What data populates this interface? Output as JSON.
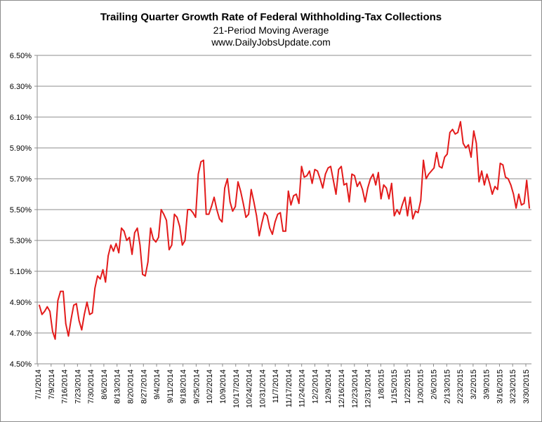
{
  "chart_data": {
    "type": "line",
    "title": "Trailing Quarter Growth Rate of Federal Withholding-Tax Collections",
    "subtitle": "21-Period Moving Average",
    "source": "www.DailyJobsUpdate.com",
    "xlabel": "",
    "ylabel": "",
    "ylim": [
      0.045,
      0.065
    ],
    "y_ticks": [
      "4.50%",
      "4.70%",
      "4.90%",
      "5.10%",
      "5.30%",
      "5.50%",
      "5.70%",
      "5.90%",
      "6.10%",
      "6.30%",
      "6.50%"
    ],
    "x_ticks": [
      "7/1/2014",
      "7/9/2014",
      "7/16/2014",
      "7/23/2014",
      "7/30/2014",
      "8/6/2014",
      "8/13/2014",
      "8/20/2014",
      "8/27/2014",
      "9/4/2014",
      "9/11/2014",
      "9/18/2014",
      "9/25/2014",
      "10/2/2014",
      "10/9/2014",
      "10/17/2014",
      "10/24/2014",
      "10/31/2014",
      "11/7/2014",
      "11/17/2014",
      "11/24/2014",
      "12/2/2014",
      "12/9/2014",
      "12/16/2014",
      "12/23/2014",
      "12/31/2014",
      "1/8/2015",
      "1/15/2015",
      "1/22/2015",
      "1/30/2015",
      "2/6/2015",
      "2/13/2015",
      "2/23/2015",
      "3/2/2015",
      "3/9/2015",
      "3/16/2015",
      "3/23/2015",
      "3/30/2015"
    ],
    "grid": true,
    "line_color": "#e31b1b",
    "series": [
      {
        "values": [
          0.0488,
          0.0482,
          0.0484,
          0.0487,
          0.0484,
          0.0471,
          0.0466,
          0.0491,
          0.0497,
          0.0497,
          0.0476,
          0.0468,
          0.0479,
          0.0488,
          0.0489,
          0.0478,
          0.0472,
          0.0482,
          0.049,
          0.0482,
          0.0483,
          0.0499,
          0.0507,
          0.0505,
          0.0511,
          0.0503,
          0.052,
          0.0527,
          0.0523,
          0.0528,
          0.0522,
          0.0538,
          0.0536,
          0.053,
          0.0532,
          0.0521,
          0.0535,
          0.0538,
          0.0527,
          0.0508,
          0.0507,
          0.0516,
          0.0538,
          0.0531,
          0.0529,
          0.0532,
          0.055,
          0.0547,
          0.0543,
          0.0524,
          0.0527,
          0.0547,
          0.0545,
          0.0539,
          0.0527,
          0.053,
          0.055,
          0.055,
          0.0548,
          0.0545,
          0.0573,
          0.0581,
          0.0582,
          0.0547,
          0.0547,
          0.0552,
          0.0558,
          0.055,
          0.0544,
          0.0542,
          0.0564,
          0.057,
          0.0555,
          0.0549,
          0.0552,
          0.0568,
          0.0562,
          0.0554,
          0.0545,
          0.0547,
          0.0563,
          0.0555,
          0.0546,
          0.0533,
          0.0541,
          0.0548,
          0.0546,
          0.0538,
          0.0534,
          0.0542,
          0.0547,
          0.0548,
          0.0536,
          0.0536,
          0.0562,
          0.0553,
          0.0559,
          0.056,
          0.0554,
          0.0578,
          0.0571,
          0.0572,
          0.0575,
          0.0567,
          0.0576,
          0.0575,
          0.057,
          0.0564,
          0.0573,
          0.0577,
          0.0578,
          0.0569,
          0.056,
          0.0576,
          0.0578,
          0.0566,
          0.0567,
          0.0555,
          0.0573,
          0.0572,
          0.0565,
          0.0568,
          0.0563,
          0.0555,
          0.0564,
          0.057,
          0.0573,
          0.0566,
          0.0574,
          0.0557,
          0.0566,
          0.0564,
          0.0557,
          0.0567,
          0.0546,
          0.055,
          0.0547,
          0.0553,
          0.0558,
          0.0546,
          0.0558,
          0.0544,
          0.0549,
          0.0548,
          0.0556,
          0.0582,
          0.057,
          0.0573,
          0.0575,
          0.0577,
          0.0587,
          0.0578,
          0.0577,
          0.0584,
          0.0586,
          0.06,
          0.0602,
          0.0599,
          0.06,
          0.0607,
          0.0593,
          0.059,
          0.0592,
          0.0584,
          0.0601,
          0.0593,
          0.0568,
          0.0575,
          0.0566,
          0.0573,
          0.0567,
          0.056,
          0.0565,
          0.0563,
          0.058,
          0.0579,
          0.0571,
          0.057,
          0.0566,
          0.056,
          0.0551,
          0.056,
          0.0553,
          0.0554,
          0.0569,
          0.0551
        ]
      }
    ]
  }
}
